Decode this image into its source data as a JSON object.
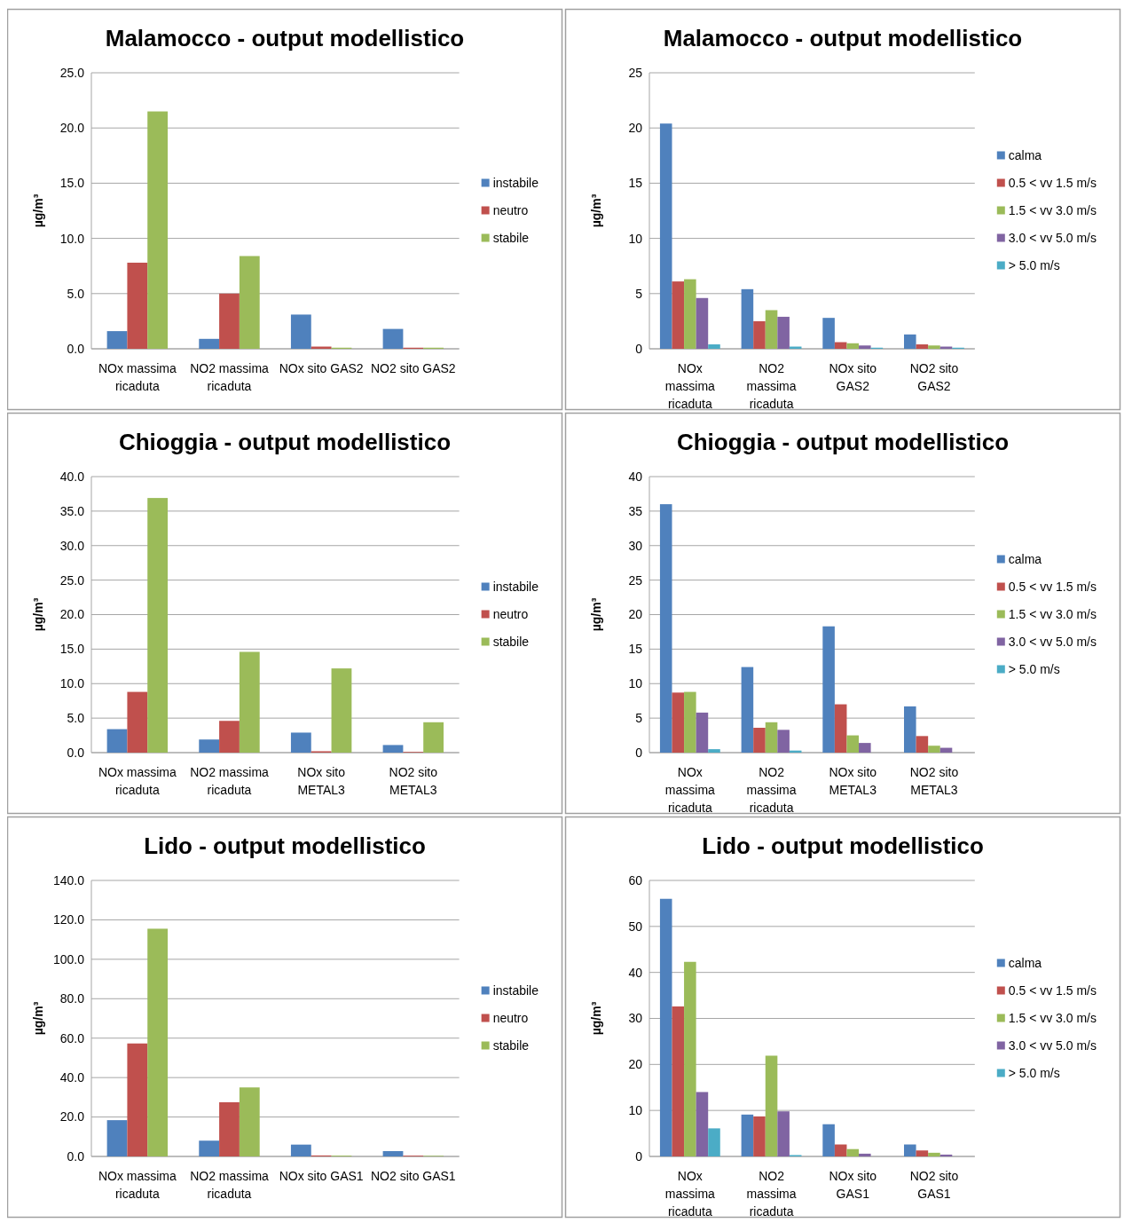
{
  "chart_data": [
    {
      "type": "bar",
      "title": "Malamocco - output modellistico",
      "ylabel": "µg/m³",
      "categories": [
        "NOx massima ricaduta",
        "NO2 massima ricaduta",
        "NOx sito GAS2",
        "NO2 sito GAS2"
      ],
      "ylim": [
        0,
        25
      ],
      "yticks": [
        {
          "value": 0,
          "label": "0.0"
        },
        {
          "value": 5,
          "label": "5.0"
        },
        {
          "value": 10,
          "label": "10.0"
        },
        {
          "value": 15,
          "label": "15.0"
        },
        {
          "value": 20,
          "label": "20.0"
        },
        {
          "value": 25,
          "label": "25.0"
        }
      ],
      "grid": "y",
      "legend": "right",
      "series": [
        {
          "name": "instabile",
          "color": "#4f81bd",
          "values": [
            1.6,
            0.9,
            3.1,
            1.8
          ]
        },
        {
          "name": "neutro",
          "color": "#c0504d",
          "values": [
            7.8,
            5.0,
            0.2,
            0.1
          ]
        },
        {
          "name": "stabile",
          "color": "#9bbb59",
          "values": [
            21.5,
            8.4,
            0.1,
            0.1
          ]
        }
      ]
    },
    {
      "type": "bar",
      "title": "Malamocco - output modellistico",
      "ylabel": "µg/m³",
      "categories": [
        "NOx massima ricaduta",
        "NO2 massima ricaduta",
        "NOx sito GAS2",
        "NO2 sito GAS2"
      ],
      "ylim": [
        0,
        25
      ],
      "yticks": [
        0,
        5,
        10,
        15,
        20,
        25
      ],
      "grid": "y",
      "legend": "right",
      "series": [
        {
          "name": "calma",
          "color": "#4f81bd",
          "values": [
            20.4,
            5.4,
            2.8,
            1.3
          ]
        },
        {
          "name": "0.5 < vv 1.5 m/s",
          "color": "#c0504d",
          "values": [
            6.1,
            2.5,
            0.6,
            0.4
          ]
        },
        {
          "name": "1.5 < vv 3.0 m/s",
          "color": "#9bbb59",
          "values": [
            6.3,
            3.5,
            0.5,
            0.3
          ]
        },
        {
          "name": "3.0 < vv 5.0 m/s",
          "color": "#8064a2",
          "values": [
            4.6,
            2.9,
            0.3,
            0.2
          ]
        },
        {
          "name": "> 5.0 m/s",
          "color": "#4bacc6",
          "values": [
            0.4,
            0.2,
            0.1,
            0.1
          ]
        }
      ]
    },
    {
      "type": "bar",
      "title": "Chioggia - output modellistico",
      "ylabel": "µg/m³",
      "categories": [
        "NOx massima ricaduta",
        "NO2 massima ricaduta",
        "NOx sito METAL3",
        "NO2 sito METAL3"
      ],
      "ylim": [
        0,
        40
      ],
      "yticks": [
        {
          "value": 0,
          "label": "0.0"
        },
        {
          "value": 5,
          "label": "5.0"
        },
        {
          "value": 10,
          "label": "10.0"
        },
        {
          "value": 15,
          "label": "15.0"
        },
        {
          "value": 20,
          "label": "20.0"
        },
        {
          "value": 25,
          "label": "25.0"
        },
        {
          "value": 30,
          "label": "30.0"
        },
        {
          "value": 35,
          "label": "35.0"
        },
        {
          "value": 40,
          "label": "40.0"
        }
      ],
      "grid": "y",
      "legend": "right",
      "series": [
        {
          "name": "instabile",
          "color": "#4f81bd",
          "values": [
            3.4,
            1.9,
            2.9,
            1.1
          ]
        },
        {
          "name": "neutro",
          "color": "#c0504d",
          "values": [
            8.8,
            4.6,
            0.2,
            0.1
          ]
        },
        {
          "name": "stabile",
          "color": "#9bbb59",
          "values": [
            36.9,
            14.6,
            12.2,
            4.4
          ]
        }
      ]
    },
    {
      "type": "bar",
      "title": "Chioggia - output modellistico",
      "ylabel": "µg/m³",
      "categories": [
        "NOx massima ricaduta",
        "NO2 massima ricaduta",
        "NOx sito METAL3",
        "NO2 sito METAL3"
      ],
      "ylim": [
        0,
        40
      ],
      "yticks": [
        0,
        5,
        10,
        15,
        20,
        25,
        30,
        35,
        40
      ],
      "grid": "y",
      "legend": "right",
      "series": [
        {
          "name": "calma",
          "color": "#4f81bd",
          "values": [
            36,
            12.4,
            18.3,
            6.7
          ]
        },
        {
          "name": "0.5 < vv 1.5 m/s",
          "color": "#c0504d",
          "values": [
            8.7,
            3.6,
            7.0,
            2.4
          ]
        },
        {
          "name": "1.5 < vv 3.0 m/s",
          "color": "#9bbb59",
          "values": [
            8.8,
            4.4,
            2.5,
            1.0
          ]
        },
        {
          "name": "3.0 < vv 5.0 m/s",
          "color": "#8064a2",
          "values": [
            5.8,
            3.3,
            1.4,
            0.7
          ]
        },
        {
          "name": "> 5.0 m/s",
          "color": "#4bacc6",
          "values": [
            0.5,
            0.3,
            0,
            0
          ]
        }
      ]
    },
    {
      "type": "bar",
      "title": "Lido - output modellistico",
      "ylabel": "µg/m³",
      "categories": [
        "NOx massima ricaduta",
        "NO2 massima ricaduta",
        "NOx sito GAS1",
        "NO2 sito GAS1"
      ],
      "ylim": [
        0,
        140
      ],
      "yticks": [
        {
          "value": 0,
          "label": "0.0"
        },
        {
          "value": 20,
          "label": "20.0"
        },
        {
          "value": 40,
          "label": "40.0"
        },
        {
          "value": 60,
          "label": "60.0"
        },
        {
          "value": 80,
          "label": "80.0"
        },
        {
          "value": 100,
          "label": "100.0"
        },
        {
          "value": 120,
          "label": "120.0"
        },
        {
          "value": 140,
          "label": "140.0"
        }
      ],
      "grid": "y",
      "legend": "right",
      "series": [
        {
          "name": "instabile",
          "color": "#4f81bd",
          "values": [
            18.4,
            8,
            6,
            2.7
          ]
        },
        {
          "name": "neutro",
          "color": "#c0504d",
          "values": [
            57.3,
            27.5,
            0.5,
            0.4
          ]
        },
        {
          "name": "stabile",
          "color": "#9bbb59",
          "values": [
            115.5,
            35,
            0.4,
            0.3
          ]
        }
      ]
    },
    {
      "type": "bar",
      "title": "Lido - output modellistico",
      "ylabel": "µg/m³",
      "categories": [
        "NOx massima ricaduta",
        "NO2 massima ricaduta",
        "NOx sito GAS1",
        "NO2 sito GAS1"
      ],
      "ylim": [
        0,
        60
      ],
      "yticks": [
        0,
        10,
        20,
        30,
        40,
        50,
        60
      ],
      "grid": "y",
      "legend": "right",
      "series": [
        {
          "name": "calma",
          "color": "#4f81bd",
          "values": [
            56,
            9.1,
            7.0,
            2.6
          ]
        },
        {
          "name": "0.5 < vv 1.5 m/s",
          "color": "#c0504d",
          "values": [
            32.6,
            8.7,
            2.6,
            1.3
          ]
        },
        {
          "name": "1.5 < vv 3.0 m/s",
          "color": "#9bbb59",
          "values": [
            42.3,
            21.9,
            1.6,
            0.8
          ]
        },
        {
          "name": "3.0 < vv 5.0 m/s",
          "color": "#8064a2",
          "values": [
            14,
            9.8,
            0.6,
            0.4
          ]
        },
        {
          "name": "> 5.0 m/s",
          "color": "#4bacc6",
          "values": [
            6.1,
            0.3,
            0,
            0
          ]
        }
      ]
    }
  ]
}
